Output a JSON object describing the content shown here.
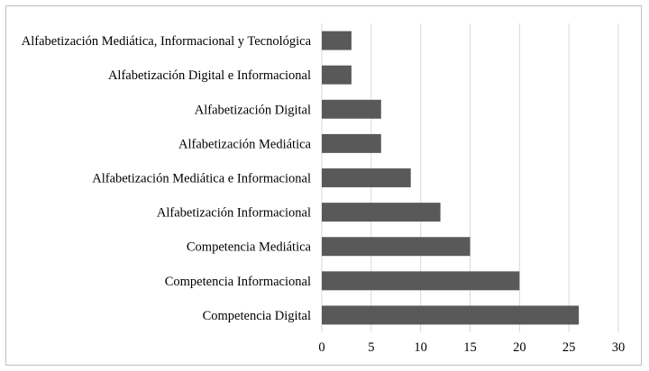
{
  "chart_data": {
    "type": "bar",
    "orientation": "horizontal",
    "title": "",
    "xlabel": "",
    "ylabel": "",
    "categories": [
      "Alfabetización Mediática, Informacional y Tecnológica",
      "Alfabetización Digital e Informacional",
      "Alfabetización Digital",
      "Alfabetización Mediática",
      "Alfabetización Mediática e Informacional",
      "Alfabetización Informacional",
      "Competencia Mediática",
      "Competencia Informacional",
      "Competencia Digital"
    ],
    "values": [
      3,
      3,
      6,
      6,
      9,
      12,
      15,
      20,
      26
    ],
    "xlim": [
      0,
      30
    ],
    "xticks": [
      "0",
      "5",
      "10",
      "15",
      "20",
      "25",
      "30"
    ],
    "grid": true,
    "legend": "none",
    "bar_color": "#595959",
    "grid_color": "#d9d9d9"
  }
}
